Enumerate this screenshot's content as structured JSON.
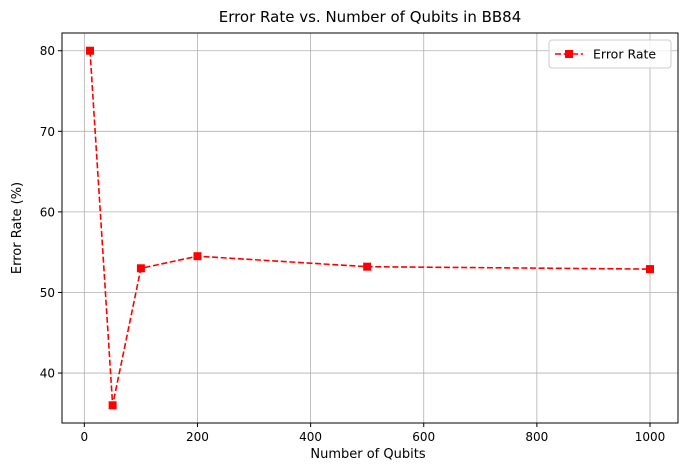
{
  "chart_data": {
    "type": "line",
    "title": "Error Rate vs. Number of Qubits in BB84",
    "xlabel": "Number of Qubits",
    "ylabel": "Error Rate (%)",
    "x": [
      10,
      50,
      100,
      200,
      500,
      1000
    ],
    "series": [
      {
        "name": "Error Rate",
        "values": [
          80,
          36,
          53,
          54.5,
          53.2,
          52.9
        ],
        "color": "#ff0000",
        "line_style": "dashed",
        "marker": "square"
      }
    ],
    "xlim": [
      -39.5,
      1049.5
    ],
    "ylim": [
      33.8,
      82.2
    ],
    "xticks": [
      0,
      200,
      400,
      600,
      800,
      1000
    ],
    "yticks": [
      40,
      50,
      60,
      70,
      80
    ],
    "grid": true,
    "legend_position": "top-right"
  }
}
